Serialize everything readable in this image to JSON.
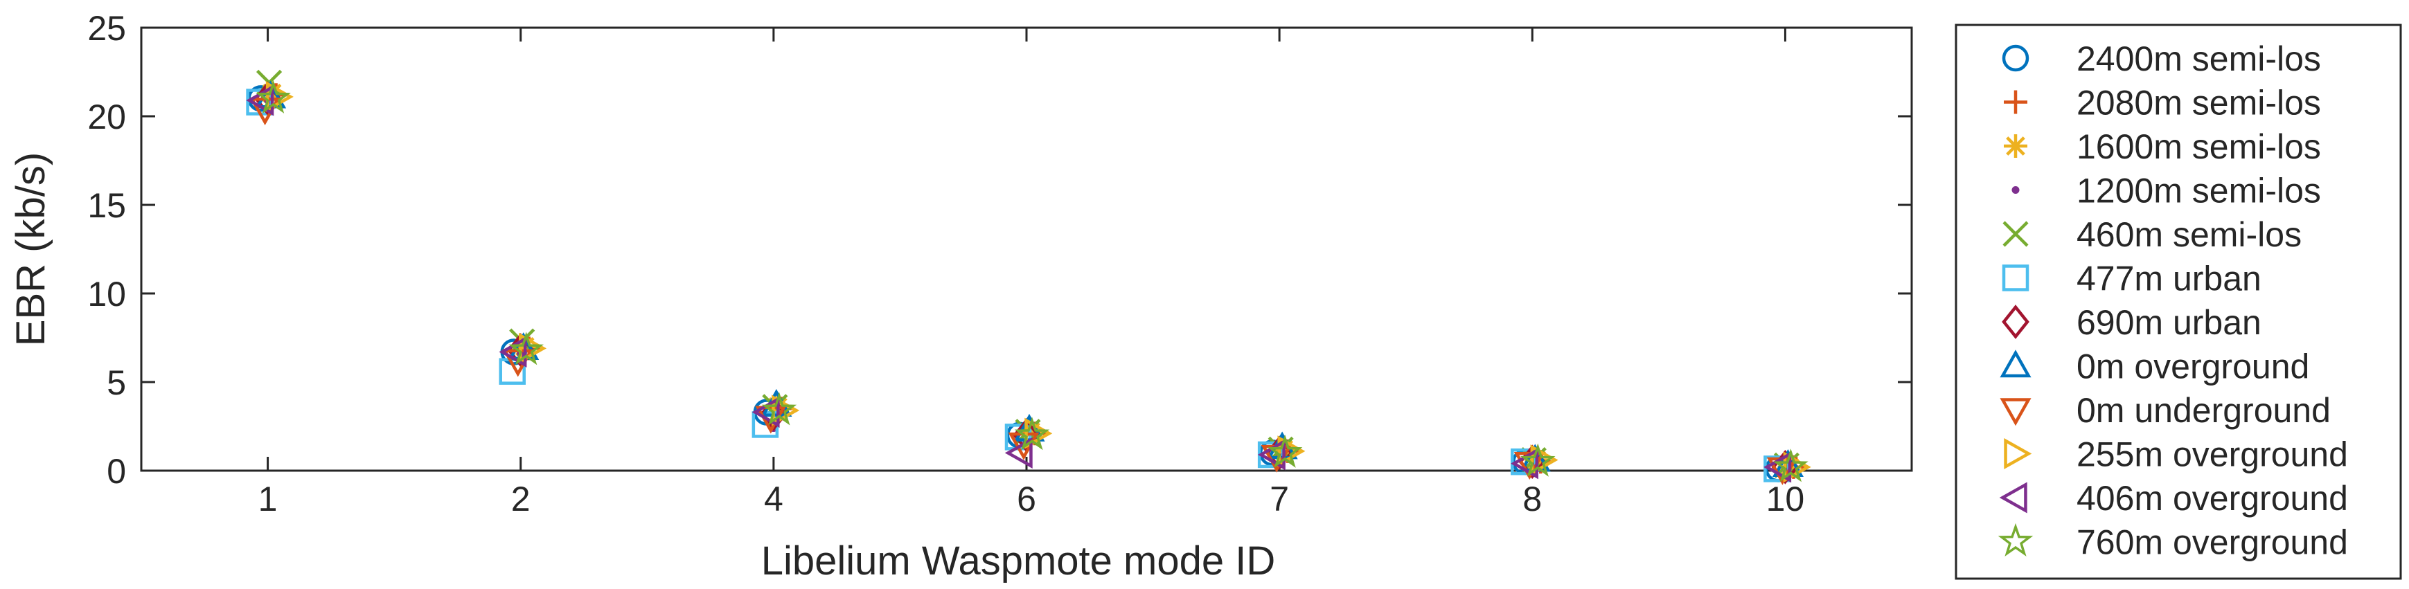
{
  "chart_data": {
    "type": "scatter",
    "title": "",
    "xlabel": "Libelium Waspmote mode ID",
    "ylabel": "EBR (kb/s)",
    "ylim": [
      0,
      25
    ],
    "yticks": [
      "0",
      "5",
      "10",
      "15",
      "20",
      "25"
    ],
    "categories": [
      "1",
      "2",
      "4",
      "6",
      "7",
      "8",
      "10"
    ],
    "grid": false,
    "legend_position": "right-outside",
    "series": [
      {
        "name": "2400m semi-los",
        "marker": "circle",
        "color": "#0072BD",
        "values": [
          21.0,
          6.7,
          3.3,
          2.0,
          1.0,
          0.5,
          0.1
        ]
      },
      {
        "name": "2080m semi-los",
        "marker": "plus",
        "color": "#D95319",
        "values": [
          21.2,
          6.9,
          3.5,
          2.1,
          1.1,
          0.5,
          0.2
        ]
      },
      {
        "name": "1600m semi-los",
        "marker": "asterisk",
        "color": "#EDB120",
        "values": [
          21.3,
          7.0,
          3.6,
          2.2,
          1.2,
          0.6,
          0.2
        ]
      },
      {
        "name": "1200m semi-los",
        "marker": "point",
        "color": "#7E2F8E",
        "values": [
          20.9,
          6.6,
          2.4,
          1.6,
          0.8,
          0.4,
          0.1
        ]
      },
      {
        "name": "460m semi-los",
        "marker": "x",
        "color": "#77AC30",
        "values": [
          21.9,
          7.3,
          3.6,
          2.2,
          1.2,
          0.6,
          0.3
        ]
      },
      {
        "name": "477m urban",
        "marker": "square",
        "color": "#4DBEEE",
        "values": [
          20.8,
          5.6,
          2.6,
          1.9,
          0.9,
          0.5,
          0.1
        ]
      },
      {
        "name": "690m urban",
        "marker": "diamond",
        "color": "#A2142F",
        "values": [
          21.0,
          6.8,
          3.2,
          2.0,
          1.0,
          0.5,
          0.2
        ]
      },
      {
        "name": "0m overground",
        "marker": "triangle-up",
        "color": "#0072BD",
        "values": [
          21.1,
          6.9,
          3.7,
          2.3,
          1.3,
          0.6,
          0.3
        ]
      },
      {
        "name": "0m underground",
        "marker": "triangle-down",
        "color": "#D95319",
        "values": [
          20.4,
          6.2,
          3.0,
          1.5,
          0.8,
          0.4,
          0.1
        ]
      },
      {
        "name": "255m overground",
        "marker": "triangle-right",
        "color": "#EDB120",
        "values": [
          21.1,
          6.9,
          3.4,
          2.1,
          1.1,
          0.6,
          0.2
        ]
      },
      {
        "name": "406m overground",
        "marker": "triangle-left",
        "color": "#7E2F8E",
        "values": [
          20.9,
          6.7,
          3.3,
          1.0,
          0.9,
          0.4,
          0.2
        ]
      },
      {
        "name": "760m overground",
        "marker": "pentagram",
        "color": "#77AC30",
        "values": [
          21.0,
          6.8,
          3.4,
          2.0,
          1.0,
          0.5,
          0.2
        ]
      }
    ]
  }
}
